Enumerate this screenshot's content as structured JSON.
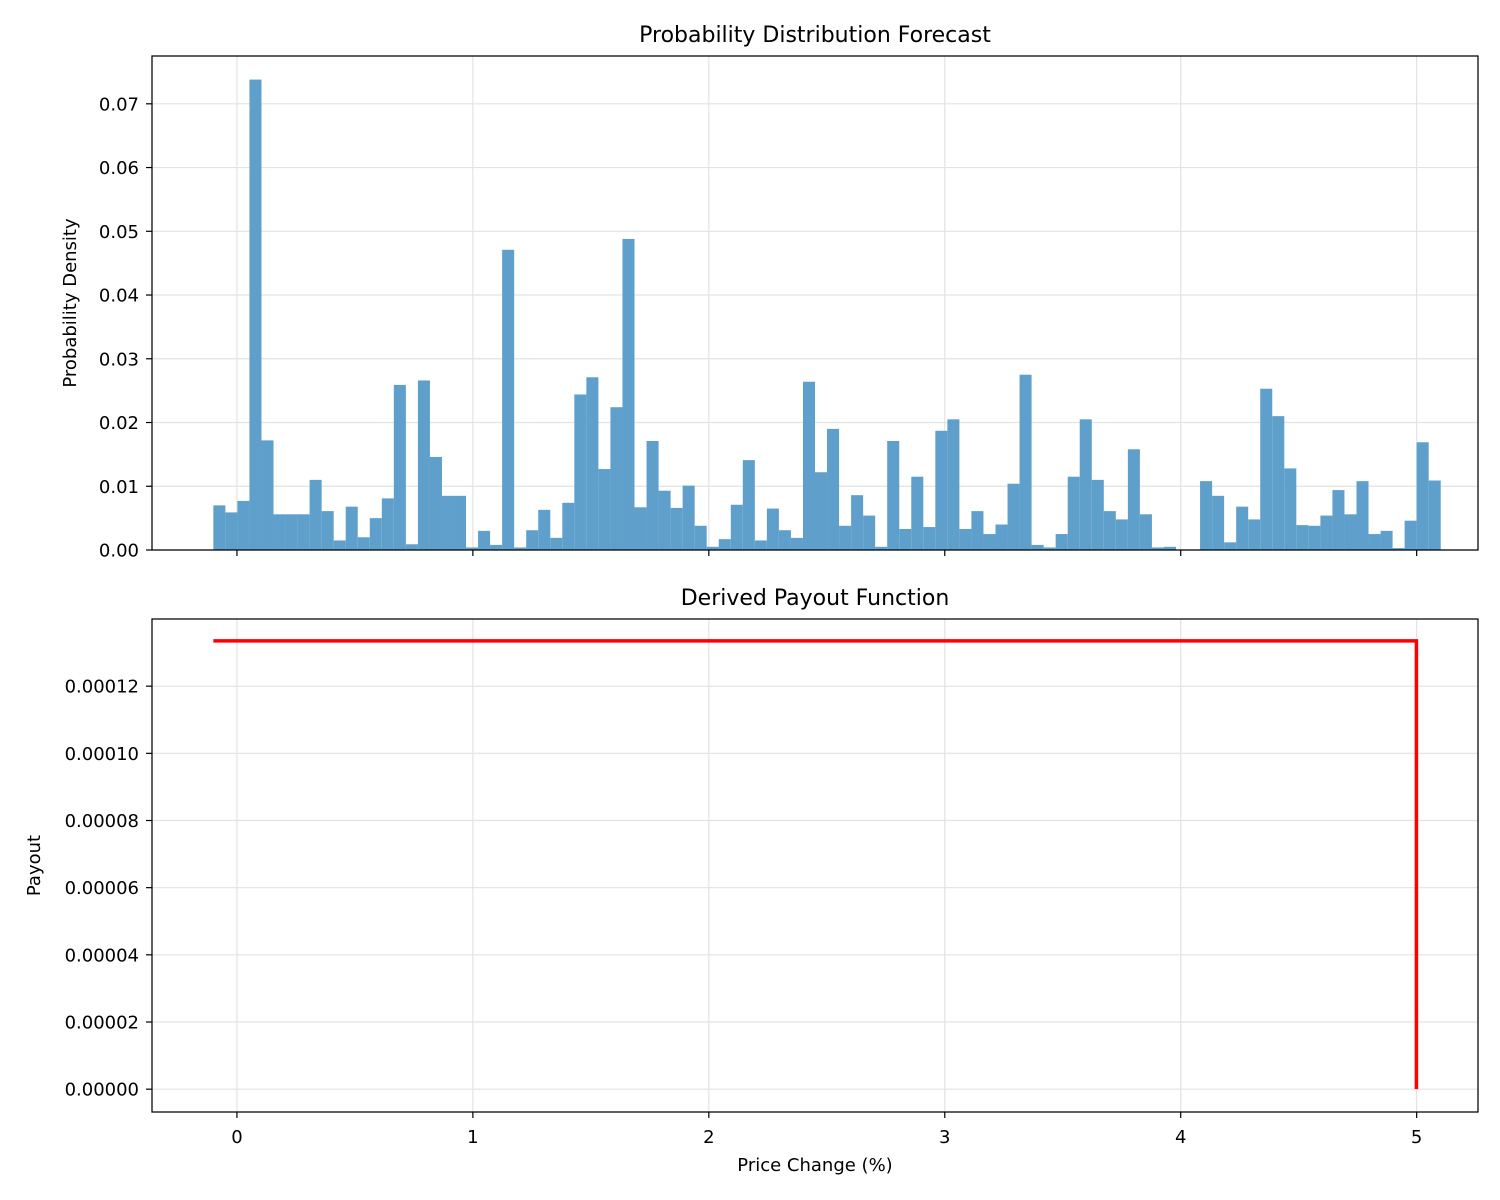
{
  "chart_data": [
    {
      "type": "bar",
      "title": "Probability Distribution Forecast",
      "xlabel": "",
      "ylabel": "Probability Density",
      "xlim": [
        -0.36,
        5.26
      ],
      "ylim": [
        0,
        0.0775
      ],
      "xticks": [
        0,
        1,
        2,
        3,
        4,
        5
      ],
      "xtick_labels": [],
      "yticks": [
        0,
        0.01,
        0.02,
        0.03,
        0.04,
        0.05,
        0.06,
        0.07
      ],
      "ytick_labels": [
        "0.00",
        "0.01",
        "0.02",
        "0.03",
        "0.04",
        "0.05",
        "0.06",
        "0.07"
      ],
      "grid": true,
      "bin_start": -0.1,
      "bin_width": 0.051,
      "values": [
        0.007,
        0.0059,
        0.0077,
        0.0738,
        0.0172,
        0.0056,
        0.0056,
        0.0056,
        0.011,
        0.0061,
        0.0015,
        0.0068,
        0.002,
        0.005,
        0.0081,
        0.0259,
        0.0009,
        0.0266,
        0.0146,
        0.0085,
        0.0085,
        0.0004,
        0.003,
        0.0008,
        0.0471,
        0.0004,
        0.0031,
        0.0063,
        0.0019,
        0.0074,
        0.0244,
        0.0271,
        0.0127,
        0.0224,
        0.0488,
        0.0067,
        0.0171,
        0.0093,
        0.0066,
        0.0101,
        0.0038,
        0.0005,
        0.0017,
        0.0071,
        0.0141,
        0.0015,
        0.0065,
        0.0031,
        0.0019,
        0.0264,
        0.0122,
        0.019,
        0.0038,
        0.0086,
        0.0054,
        0.0005,
        0.0171,
        0.0033,
        0.0115,
        0.0036,
        0.0187,
        0.0205,
        0.0033,
        0.0061,
        0.0025,
        0.004,
        0.0104,
        0.0275,
        0.0008,
        0.0004,
        0.0025,
        0.0115,
        0.0205,
        0.011,
        0.0061,
        0.0048,
        0.0158,
        0.0056,
        0.0004,
        0.0005,
        0.0,
        0.0,
        0.0108,
        0.0085,
        0.0012,
        0.0068,
        0.0048,
        0.0253,
        0.021,
        0.0128,
        0.0039,
        0.0038,
        0.0054,
        0.0094,
        0.0056,
        0.0108,
        0.0025,
        0.003,
        0.0003,
        0.0046,
        0.0169,
        0.0109
      ],
      "color": "#5f9fcb"
    },
    {
      "type": "line",
      "title": "Derived Payout Function",
      "xlabel": "Price Change (%)",
      "ylabel": "Payout",
      "xlim": [
        -0.36,
        5.26
      ],
      "ylim": [
        -6.8e-06,
        0.00014
      ],
      "xticks": [
        0,
        1,
        2,
        3,
        4,
        5
      ],
      "xtick_labels": [
        "0",
        "1",
        "2",
        "3",
        "4",
        "5"
      ],
      "yticks": [
        0,
        2e-05,
        4e-05,
        6e-05,
        8e-05,
        0.0001,
        0.00012
      ],
      "ytick_labels": [
        "0.00000",
        "0.00002",
        "0.00004",
        "0.00006",
        "0.00008",
        "0.00010",
        "0.00012"
      ],
      "grid": true,
      "series": [
        {
          "x": [
            -0.1,
            4.999,
            4.999
          ],
          "y": [
            0.0001335,
            0.0001335,
            0.0
          ],
          "color": "#ff0000"
        }
      ]
    }
  ]
}
